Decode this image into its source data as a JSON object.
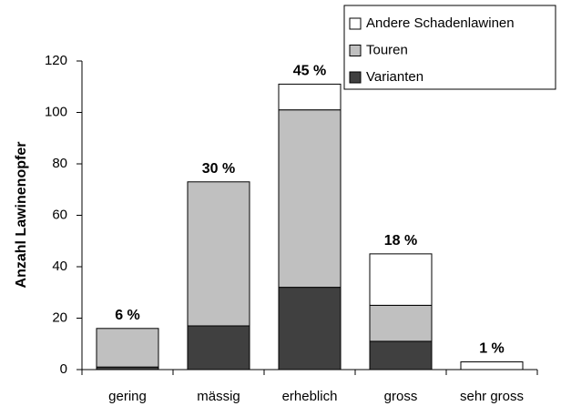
{
  "chart_data": {
    "type": "stacked_bar",
    "categories": [
      "gering",
      "mässig",
      "erheblich",
      "gross",
      "sehr gross"
    ],
    "series": [
      {
        "name": "Varianten",
        "color": "#404040",
        "values": [
          1,
          17,
          32,
          11,
          0
        ]
      },
      {
        "name": "Touren",
        "color": "#c0c0c0",
        "values": [
          15,
          56,
          69,
          14,
          0
        ]
      },
      {
        "name": "Andere Schadenlawinen",
        "color": "#ffffff",
        "values": [
          0,
          0,
          10,
          20,
          3
        ]
      }
    ],
    "percent_labels": [
      "6 %",
      "30 %",
      "45 %",
      "18 %",
      "1 %"
    ],
    "y_axis_label": "Anzahl Lawinenopfer",
    "ylim": [
      0,
      120
    ],
    "yticks": [
      0,
      20,
      40,
      60,
      80,
      100,
      120
    ],
    "grid": false,
    "legend": "top-right"
  }
}
